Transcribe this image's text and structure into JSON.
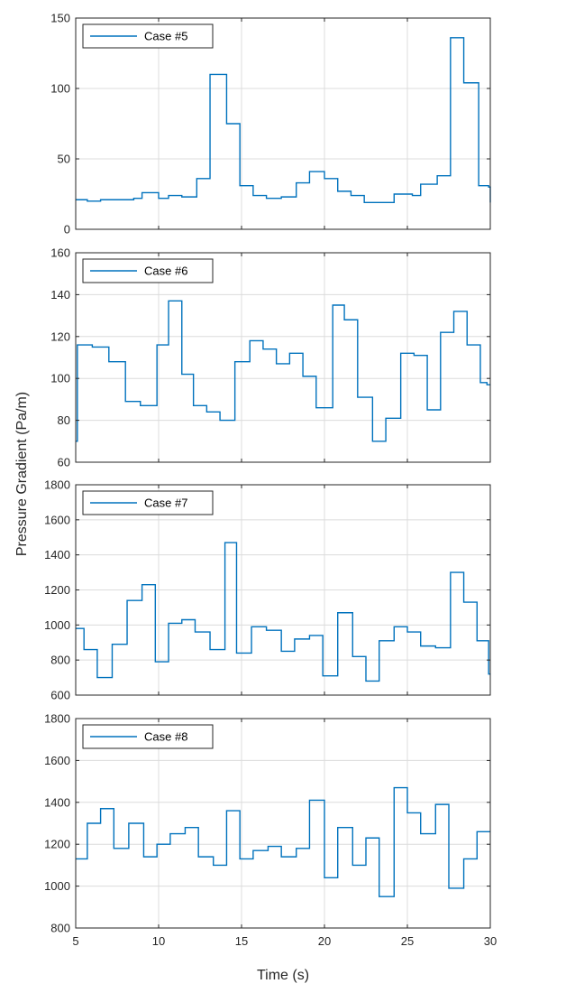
{
  "figure": {
    "xlabel": "Time (s)",
    "ylabel": "Pressure Gradient (Pa/m)",
    "x_ticks": [
      "5",
      "10",
      "15",
      "20",
      "25",
      "30"
    ]
  },
  "style": {
    "line_color": "#0072bd",
    "grid_color": "#dcdcdc",
    "axis_color": "#262626"
  },
  "chart_data": [
    {
      "type": "line",
      "step": true,
      "series": [
        {
          "name": "Case #5",
          "x": [
            5,
            5.7,
            6.5,
            7.5,
            8.5,
            9,
            10,
            10.6,
            11.4,
            12.3,
            13.1,
            14.1,
            14.9,
            15.7,
            16.5,
            17.4,
            18.3,
            19.1,
            20,
            20.8,
            21.6,
            22.4,
            23.3,
            24.2,
            25.3,
            25.8,
            26.8,
            27.6,
            28.4,
            29.3,
            29.9,
            30
          ],
          "values": [
            21,
            20,
            21,
            21,
            22,
            26,
            22,
            24,
            23,
            36,
            110,
            75,
            31,
            24,
            22,
            23,
            33,
            41,
            36,
            27,
            24,
            19,
            19,
            25,
            24,
            32,
            38,
            136,
            104,
            31,
            30,
            19
          ]
        }
      ],
      "xlim": [
        5,
        30
      ],
      "ylim": [
        0,
        150
      ],
      "y_ticks": [
        "0",
        "50",
        "100",
        "150"
      ],
      "grid": true,
      "legend": "top-left"
    },
    {
      "type": "line",
      "step": true,
      "series": [
        {
          "name": "Case #6",
          "x": [
            5,
            5.1,
            6,
            7,
            8,
            8.9,
            9.9,
            10.6,
            11.4,
            12.1,
            12.9,
            13.7,
            14.6,
            15.5,
            16.3,
            17.1,
            17.9,
            18.7,
            19.5,
            20.5,
            21.2,
            22,
            22.9,
            23.7,
            24.6,
            25.4,
            26.2,
            27,
            27.8,
            28.6,
            29.4,
            29.8,
            30
          ],
          "values": [
            70,
            116,
            115,
            108,
            89,
            87,
            116,
            137,
            102,
            87,
            84,
            80,
            108,
            118,
            114,
            107,
            112,
            101,
            86,
            135,
            128,
            91,
            70,
            81,
            112,
            111,
            85,
            122,
            132,
            116,
            98,
            97,
            97
          ]
        }
      ],
      "xlim": [
        5,
        30
      ],
      "ylim": [
        60,
        160
      ],
      "y_ticks": [
        "60",
        "80",
        "100",
        "120",
        "140",
        "160"
      ],
      "grid": true,
      "legend": "top-left"
    },
    {
      "type": "line",
      "step": true,
      "series": [
        {
          "name": "Case #7",
          "x": [
            5,
            5.5,
            6.3,
            7.2,
            8.1,
            9,
            9.8,
            10.6,
            11.4,
            12.2,
            13.1,
            14,
            14.7,
            15.6,
            16.5,
            17.4,
            18.2,
            19.1,
            19.9,
            20.8,
            21.7,
            22.5,
            23.3,
            24.2,
            25,
            25.8,
            26.7,
            27.6,
            28.4,
            29.2,
            29.9,
            30
          ],
          "values": [
            980,
            860,
            700,
            890,
            1140,
            1230,
            790,
            1010,
            1030,
            960,
            860,
            1470,
            840,
            990,
            970,
            850,
            920,
            940,
            710,
            1070,
            820,
            680,
            910,
            990,
            960,
            880,
            870,
            1300,
            1130,
            910,
            720,
            720
          ]
        }
      ],
      "xlim": [
        5,
        30
      ],
      "ylim": [
        600,
        1800
      ],
      "y_ticks": [
        "600",
        "800",
        "1000",
        "1200",
        "1400",
        "1600",
        "1800"
      ],
      "grid": true,
      "legend": "top-left"
    },
    {
      "type": "line",
      "step": true,
      "series": [
        {
          "name": "Case #8",
          "x": [
            5,
            5.7,
            6.5,
            7.3,
            8.2,
            9.1,
            9.9,
            10.7,
            11.6,
            12.4,
            13.3,
            14.1,
            14.9,
            15.7,
            16.6,
            17.4,
            18.3,
            19.1,
            20,
            20.8,
            21.7,
            22.5,
            23.3,
            24.2,
            25,
            25.8,
            26.7,
            27.5,
            28.4,
            29.2,
            30
          ],
          "values": [
            1130,
            1300,
            1370,
            1180,
            1300,
            1140,
            1200,
            1250,
            1280,
            1140,
            1100,
            1360,
            1130,
            1170,
            1190,
            1140,
            1180,
            1410,
            1040,
            1280,
            1100,
            1230,
            950,
            1470,
            1350,
            1250,
            1390,
            990,
            1130,
            1260,
            1260
          ]
        }
      ],
      "xlim": [
        5,
        30
      ],
      "ylim": [
        800,
        1800
      ],
      "y_ticks": [
        "800",
        "1000",
        "1200",
        "1400",
        "1600",
        "1800"
      ],
      "grid": true,
      "legend": "top-left"
    }
  ]
}
